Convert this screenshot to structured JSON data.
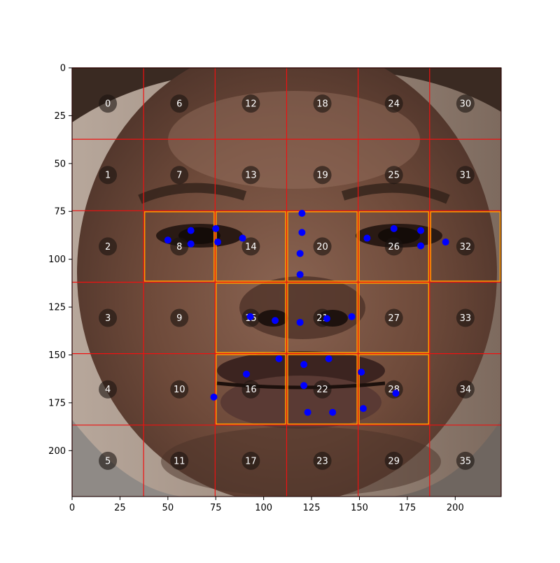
{
  "chart_data": {
    "type": "scatter",
    "title": "",
    "xlabel": "",
    "ylabel": "",
    "xlim": [
      0,
      224
    ],
    "ylim": [
      224,
      0
    ],
    "y_inverted": true,
    "grid": false,
    "background": "photograph of a face",
    "xticks": [
      0,
      25,
      50,
      75,
      100,
      125,
      150,
      175,
      200
    ],
    "yticks": [
      0,
      25,
      50,
      75,
      100,
      125,
      150,
      175,
      200
    ],
    "grid_overlay": {
      "rows": 6,
      "cols": 6,
      "cell_size": 37.33,
      "line_color": "#ee1111",
      "highlight_color": "#ff9900",
      "highlighted_cells": [
        8,
        14,
        20,
        26,
        32,
        15,
        21,
        27,
        16,
        22,
        28
      ],
      "cell_numbers": [
        0,
        1,
        2,
        3,
        4,
        5,
        6,
        7,
        8,
        9,
        10,
        11,
        12,
        13,
        14,
        15,
        16,
        17,
        18,
        19,
        20,
        21,
        22,
        23,
        24,
        25,
        26,
        27,
        28,
        29,
        30,
        31,
        32,
        33,
        34,
        35
      ]
    },
    "series": [
      {
        "color": "#0000ff",
        "points": [
          [
            50,
            90
          ],
          [
            62,
            85
          ],
          [
            62,
            92
          ],
          [
            75,
            84
          ],
          [
            76,
            91
          ],
          [
            89,
            89
          ],
          [
            120,
            76
          ],
          [
            120,
            86
          ],
          [
            119,
            97
          ],
          [
            119,
            108
          ],
          [
            154,
            89
          ],
          [
            168,
            84
          ],
          [
            182,
            85
          ],
          [
            182,
            93
          ],
          [
            195,
            91
          ],
          [
            93,
            130
          ],
          [
            106,
            132
          ],
          [
            119,
            133
          ],
          [
            133,
            131
          ],
          [
            146,
            130
          ],
          [
            108,
            152
          ],
          [
            121,
            155
          ],
          [
            134,
            152
          ],
          [
            91,
            160
          ],
          [
            74,
            172
          ],
          [
            121,
            166
          ],
          [
            151,
            159
          ],
          [
            169,
            170
          ],
          [
            123,
            180
          ],
          [
            136,
            180
          ],
          [
            152,
            178
          ]
        ]
      }
    ]
  }
}
